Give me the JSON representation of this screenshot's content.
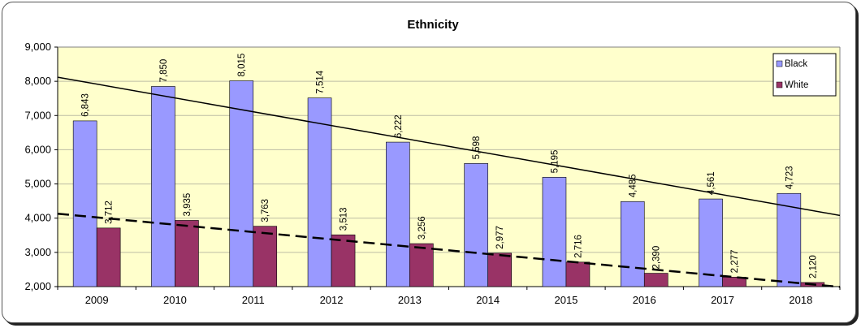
{
  "chart_data": {
    "type": "bar",
    "title": "Ethnicity",
    "categories": [
      "2009",
      "2010",
      "2011",
      "2012",
      "2013",
      "2014",
      "2015",
      "2016",
      "2017",
      "2018"
    ],
    "series": [
      {
        "name": "Black",
        "color": "#9999ff",
        "values": [
          6843,
          7850,
          8015,
          7514,
          6222,
          5598,
          5195,
          4485,
          4561,
          4723
        ],
        "labels": [
          "6,843",
          "7,850",
          "8,015",
          "7,514",
          "6,222",
          "5,598",
          "5,195",
          "4,485",
          "4,561",
          "4,723"
        ]
      },
      {
        "name": "White",
        "color": "#993366",
        "values": [
          3712,
          3935,
          3763,
          3513,
          3256,
          2977,
          2716,
          2390,
          2277,
          2120
        ],
        "labels": [
          "3,712",
          "3,935",
          "3,763",
          "3,513",
          "3,256",
          "2,977",
          "2,716",
          "2,390",
          "2,277",
          "2,120"
        ]
      }
    ],
    "trendlines": [
      {
        "series": "Black",
        "style": "solid",
        "start": 8120,
        "end": 4080
      },
      {
        "series": "White",
        "style": "dashed",
        "start": 4130,
        "end": 1990
      }
    ],
    "ylim": [
      2000,
      9000
    ],
    "yticks": [
      "2,000",
      "3,000",
      "4,000",
      "5,000",
      "6,000",
      "7,000",
      "8,000",
      "9,000"
    ],
    "ytick_values": [
      2000,
      3000,
      4000,
      5000,
      6000,
      7000,
      8000,
      9000
    ],
    "grid": true,
    "legend_position": "top-right",
    "plot_background": "#ffffcc"
  }
}
